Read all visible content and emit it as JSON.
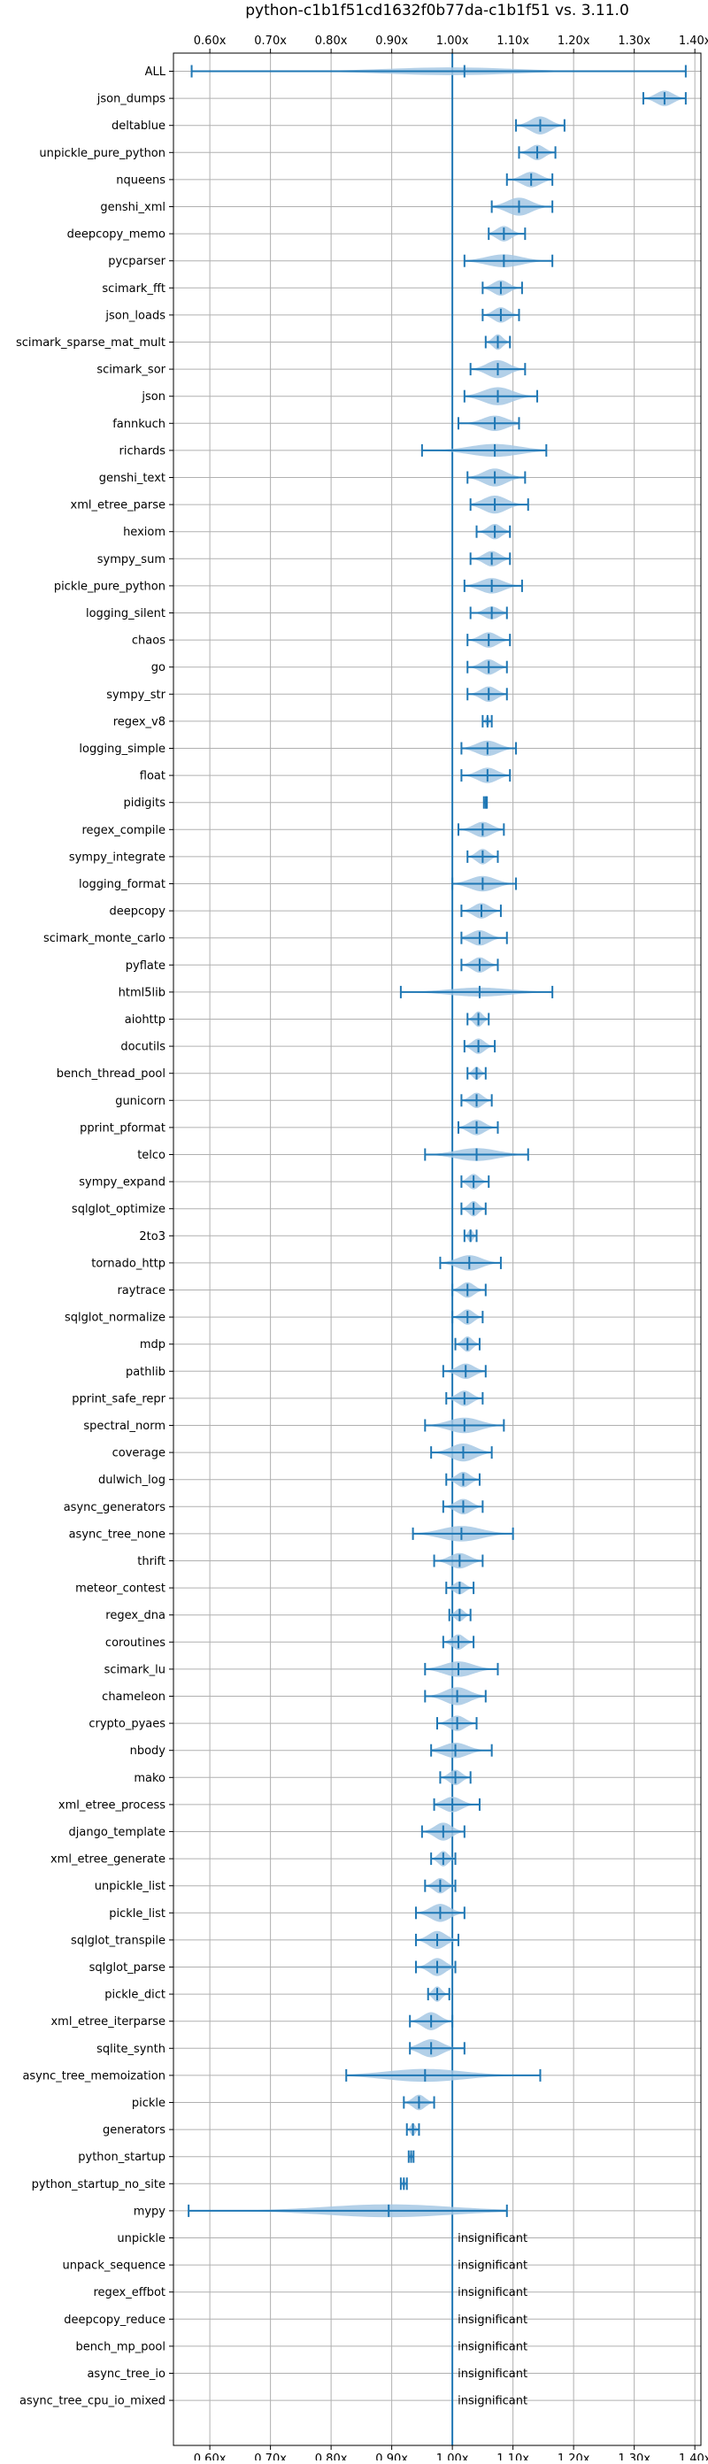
{
  "chart_data": {
    "type": "violin",
    "orientation": "horizontal",
    "title": "python-c1b1f51cd1632f0b77da-c1b1f51 vs. 3.11.0",
    "xlabel": "",
    "ylabel": "",
    "xlim": [
      0.54,
      1.41
    ],
    "x_ticks": [
      0.6,
      0.7,
      0.8,
      0.9,
      1.0,
      1.1,
      1.2,
      1.3,
      1.4
    ],
    "x_tick_labels": [
      "0.60x",
      "0.70x",
      "0.80x",
      "0.90x",
      "1.00x",
      "1.10x",
      "1.20x",
      "1.30x",
      "1.40x"
    ],
    "tick_axes": [
      "top",
      "bottom"
    ],
    "reference_line": 1.0,
    "grid": true,
    "legend": "none",
    "colors": {
      "violin_fill": "#a6c8e4",
      "line": "#1f77b4",
      "grid": "#b0b0b0",
      "text": "#000000",
      "background": "#ffffff"
    },
    "benchmarks": [
      {
        "name": "ALL",
        "min": 0.57,
        "max": 1.385,
        "mean": 1.02,
        "median": 1.02,
        "mode": [
          0.925,
          1.03
        ],
        "width": 0.3
      },
      {
        "name": "json_dumps",
        "min": 1.315,
        "max": 1.385,
        "mean": 1.35,
        "median": 1.35,
        "width": 0.6
      },
      {
        "name": "deltablue",
        "min": 1.105,
        "max": 1.185,
        "mean": 1.145,
        "median": 1.145,
        "width": 0.7
      },
      {
        "name": "unpickle_pure_python",
        "min": 1.11,
        "max": 1.17,
        "mean": 1.14,
        "median": 1.14,
        "width": 0.6
      },
      {
        "name": "nqueens",
        "min": 1.09,
        "max": 1.165,
        "mean": 1.13,
        "median": 1.13,
        "width": 0.6
      },
      {
        "name": "genshi_xml",
        "min": 1.065,
        "max": 1.165,
        "mean": 1.11,
        "median": 1.11,
        "width": 0.7
      },
      {
        "name": "deepcopy_memo",
        "min": 1.06,
        "max": 1.12,
        "mean": 1.085,
        "median": 1.085,
        "width": 0.6
      },
      {
        "name": "pycparser",
        "min": 1.02,
        "max": 1.165,
        "mean": 1.085,
        "median": 1.085,
        "width": 0.5
      },
      {
        "name": "scimark_fft",
        "min": 1.05,
        "max": 1.115,
        "mean": 1.08,
        "median": 1.08,
        "width": 0.6
      },
      {
        "name": "json_loads",
        "min": 1.05,
        "max": 1.11,
        "mean": 1.08,
        "median": 1.08,
        "width": 0.6
      },
      {
        "name": "scimark_sparse_mat_mult",
        "min": 1.055,
        "max": 1.095,
        "mean": 1.075,
        "median": 1.075,
        "width": 0.6
      },
      {
        "name": "scimark_sor",
        "min": 1.03,
        "max": 1.12,
        "mean": 1.075,
        "median": 1.075,
        "width": 0.7
      },
      {
        "name": "json",
        "min": 1.02,
        "max": 1.14,
        "mean": 1.075,
        "median": 1.075,
        "width": 0.7
      },
      {
        "name": "fannkuch",
        "min": 1.01,
        "max": 1.11,
        "mean": 1.07,
        "median": 1.07,
        "width": 0.6
      },
      {
        "name": "richards",
        "min": 0.95,
        "max": 1.155,
        "mean": 1.07,
        "median": 1.07,
        "width": 0.5
      },
      {
        "name": "genshi_text",
        "min": 1.025,
        "max": 1.12,
        "mean": 1.07,
        "median": 1.07,
        "width": 0.7
      },
      {
        "name": "xml_etree_parse",
        "min": 1.03,
        "max": 1.125,
        "mean": 1.07,
        "median": 1.07,
        "width": 0.7
      },
      {
        "name": "hexiom",
        "min": 1.04,
        "max": 1.095,
        "mean": 1.07,
        "median": 1.07,
        "width": 0.6
      },
      {
        "name": "sympy_sum",
        "min": 1.03,
        "max": 1.095,
        "mean": 1.065,
        "median": 1.065,
        "width": 0.6
      },
      {
        "name": "pickle_pure_python",
        "min": 1.02,
        "max": 1.115,
        "mean": 1.065,
        "median": 1.065,
        "width": 0.6
      },
      {
        "name": "logging_silent",
        "min": 1.03,
        "max": 1.09,
        "mean": 1.065,
        "median": 1.065,
        "width": 0.5
      },
      {
        "name": "chaos",
        "min": 1.025,
        "max": 1.095,
        "mean": 1.06,
        "median": 1.06,
        "width": 0.6
      },
      {
        "name": "go",
        "min": 1.025,
        "max": 1.09,
        "mean": 1.06,
        "median": 1.06,
        "width": 0.6
      },
      {
        "name": "sympy_str",
        "min": 1.025,
        "max": 1.09,
        "mean": 1.06,
        "median": 1.06,
        "width": 0.6
      },
      {
        "name": "regex_v8",
        "min": 1.05,
        "max": 1.065,
        "mean": 1.058,
        "median": 1.058,
        "width": 0.4
      },
      {
        "name": "logging_simple",
        "min": 1.015,
        "max": 1.105,
        "mean": 1.058,
        "median": 1.058,
        "width": 0.6
      },
      {
        "name": "float",
        "min": 1.015,
        "max": 1.095,
        "mean": 1.058,
        "median": 1.058,
        "width": 0.6
      },
      {
        "name": "pidigits",
        "min": 1.052,
        "max": 1.057,
        "mean": 1.055,
        "median": 1.055,
        "width": 0.4
      },
      {
        "name": "regex_compile",
        "min": 1.01,
        "max": 1.085,
        "mean": 1.05,
        "median": 1.05,
        "width": 0.6
      },
      {
        "name": "sympy_integrate",
        "min": 1.025,
        "max": 1.075,
        "mean": 1.05,
        "median": 1.05,
        "width": 0.6
      },
      {
        "name": "logging_format",
        "min": 1.0,
        "max": 1.105,
        "mean": 1.05,
        "median": 1.05,
        "width": 0.6
      },
      {
        "name": "deepcopy",
        "min": 1.015,
        "max": 1.08,
        "mean": 1.048,
        "median": 1.048,
        "width": 0.6
      },
      {
        "name": "scimark_monte_carlo",
        "min": 1.015,
        "max": 1.09,
        "mean": 1.045,
        "median": 1.045,
        "width": 0.6
      },
      {
        "name": "pyflate",
        "min": 1.015,
        "max": 1.075,
        "mean": 1.045,
        "median": 1.045,
        "width": 0.6
      },
      {
        "name": "html5lib",
        "min": 0.915,
        "max": 1.165,
        "mean": 1.045,
        "median": 1.045,
        "width": 0.35
      },
      {
        "name": "aiohttp",
        "min": 1.025,
        "max": 1.06,
        "mean": 1.043,
        "median": 1.043,
        "width": 0.6
      },
      {
        "name": "docutils",
        "min": 1.02,
        "max": 1.07,
        "mean": 1.043,
        "median": 1.043,
        "width": 0.6
      },
      {
        "name": "bench_thread_pool",
        "min": 1.025,
        "max": 1.055,
        "mean": 1.04,
        "median": 1.04,
        "width": 0.5
      },
      {
        "name": "gunicorn",
        "min": 1.015,
        "max": 1.065,
        "mean": 1.04,
        "median": 1.04,
        "width": 0.6
      },
      {
        "name": "pprint_pformat",
        "min": 1.01,
        "max": 1.075,
        "mean": 1.04,
        "median": 1.04,
        "width": 0.6
      },
      {
        "name": "telco",
        "min": 0.955,
        "max": 1.125,
        "mean": 1.04,
        "median": 1.04,
        "width": 0.5
      },
      {
        "name": "sympy_expand",
        "min": 1.015,
        "max": 1.06,
        "mean": 1.035,
        "median": 1.035,
        "width": 0.6
      },
      {
        "name": "sqlglot_optimize",
        "min": 1.015,
        "max": 1.055,
        "mean": 1.035,
        "median": 1.035,
        "width": 0.6
      },
      {
        "name": "2to3",
        "min": 1.02,
        "max": 1.04,
        "mean": 1.03,
        "median": 1.03,
        "width": 0.5
      },
      {
        "name": "tornado_http",
        "min": 0.98,
        "max": 1.08,
        "mean": 1.028,
        "median": 1.028,
        "width": 0.6
      },
      {
        "name": "raytrace",
        "min": 1.0,
        "max": 1.055,
        "mean": 1.025,
        "median": 1.025,
        "width": 0.6
      },
      {
        "name": "sqlglot_normalize",
        "min": 1.0,
        "max": 1.05,
        "mean": 1.025,
        "median": 1.025,
        "width": 0.6
      },
      {
        "name": "mdp",
        "min": 1.005,
        "max": 1.045,
        "mean": 1.025,
        "median": 1.025,
        "width": 0.6
      },
      {
        "name": "pathlib",
        "min": 0.985,
        "max": 1.055,
        "mean": 1.022,
        "median": 1.022,
        "width": 0.6
      },
      {
        "name": "pprint_safe_repr",
        "min": 0.99,
        "max": 1.05,
        "mean": 1.02,
        "median": 1.02,
        "width": 0.6
      },
      {
        "name": "spectral_norm",
        "min": 0.955,
        "max": 1.085,
        "mean": 1.02,
        "median": 1.02,
        "width": 0.6
      },
      {
        "name": "coverage",
        "min": 0.965,
        "max": 1.065,
        "mean": 1.018,
        "median": 1.018,
        "width": 0.7
      },
      {
        "name": "dulwich_log",
        "min": 0.99,
        "max": 1.045,
        "mean": 1.018,
        "median": 1.018,
        "width": 0.6
      },
      {
        "name": "async_generators",
        "min": 0.985,
        "max": 1.05,
        "mean": 1.018,
        "median": 1.018,
        "width": 0.6
      },
      {
        "name": "async_tree_none",
        "min": 0.935,
        "max": 1.1,
        "mean": 1.015,
        "median": 1.015,
        "width": 0.6
      },
      {
        "name": "thrift",
        "min": 0.97,
        "max": 1.05,
        "mean": 1.012,
        "median": 1.012,
        "width": 0.6
      },
      {
        "name": "meteor_contest",
        "min": 0.99,
        "max": 1.035,
        "mean": 1.012,
        "median": 1.012,
        "width": 0.5
      },
      {
        "name": "regex_dna",
        "min": 0.995,
        "max": 1.03,
        "mean": 1.012,
        "median": 1.012,
        "width": 0.5
      },
      {
        "name": "coroutines",
        "min": 0.985,
        "max": 1.035,
        "mean": 1.01,
        "median": 1.01,
        "width": 0.6
      },
      {
        "name": "scimark_lu",
        "min": 0.955,
        "max": 1.075,
        "mean": 1.01,
        "median": 1.01,
        "width": 0.6
      },
      {
        "name": "chameleon",
        "min": 0.955,
        "max": 1.055,
        "mean": 1.008,
        "median": 1.008,
        "width": 0.7
      },
      {
        "name": "crypto_pyaes",
        "min": 0.975,
        "max": 1.04,
        "mean": 1.008,
        "median": 1.008,
        "width": 0.6
      },
      {
        "name": "nbody",
        "min": 0.965,
        "max": 1.065,
        "mean": 1.005,
        "median": 1.005,
        "width": 0.6
      },
      {
        "name": "mako",
        "min": 0.98,
        "max": 1.03,
        "mean": 1.005,
        "median": 1.005,
        "width": 0.6
      },
      {
        "name": "xml_etree_process",
        "min": 0.97,
        "max": 1.045,
        "mean": 1.0,
        "median": 1.0,
        "width": 0.6
      },
      {
        "name": "django_template",
        "min": 0.95,
        "max": 1.02,
        "mean": 0.985,
        "median": 0.985,
        "width": 0.7
      },
      {
        "name": "xml_etree_generate",
        "min": 0.965,
        "max": 1.005,
        "mean": 0.985,
        "median": 0.985,
        "width": 0.6
      },
      {
        "name": "unpickle_list",
        "min": 0.955,
        "max": 1.005,
        "mean": 0.98,
        "median": 0.98,
        "width": 0.6
      },
      {
        "name": "pickle_list",
        "min": 0.94,
        "max": 1.02,
        "mean": 0.98,
        "median": 0.98,
        "width": 0.7
      },
      {
        "name": "sqlglot_transpile",
        "min": 0.94,
        "max": 1.01,
        "mean": 0.975,
        "median": 0.975,
        "width": 0.7
      },
      {
        "name": "sqlglot_parse",
        "min": 0.94,
        "max": 1.005,
        "mean": 0.975,
        "median": 0.975,
        "width": 0.7
      },
      {
        "name": "pickle_dict",
        "min": 0.96,
        "max": 0.995,
        "mean": 0.975,
        "median": 0.975,
        "width": 0.6
      },
      {
        "name": "xml_etree_iterparse",
        "min": 0.93,
        "max": 1.0,
        "mean": 0.965,
        "median": 0.965,
        "width": 0.7
      },
      {
        "name": "sqlite_synth",
        "min": 0.93,
        "max": 1.02,
        "mean": 0.965,
        "median": 0.965,
        "width": 0.7
      },
      {
        "name": "async_tree_memoization",
        "min": 0.825,
        "max": 1.145,
        "mean": 0.955,
        "median": 0.955,
        "width": 0.5
      },
      {
        "name": "pickle",
        "min": 0.92,
        "max": 0.97,
        "mean": 0.945,
        "median": 0.945,
        "width": 0.6
      },
      {
        "name": "generators",
        "min": 0.925,
        "max": 0.945,
        "mean": 0.935,
        "median": 0.935,
        "width": 0.5
      },
      {
        "name": "python_startup",
        "min": 0.928,
        "max": 0.936,
        "mean": 0.932,
        "median": 0.932,
        "width": 0.4
      },
      {
        "name": "python_startup_no_site",
        "min": 0.915,
        "max": 0.925,
        "mean": 0.92,
        "median": 0.92,
        "width": 0.4
      },
      {
        "name": "mypy",
        "min": 0.565,
        "max": 1.09,
        "mean": 0.895,
        "median": 0.895,
        "width": 0.5
      },
      {
        "name": "unpickle",
        "note": "insignificant"
      },
      {
        "name": "unpack_sequence",
        "note": "insignificant"
      },
      {
        "name": "regex_effbot",
        "note": "insignificant"
      },
      {
        "name": "deepcopy_reduce",
        "note": "insignificant"
      },
      {
        "name": "bench_mp_pool",
        "note": "insignificant"
      },
      {
        "name": "async_tree_io",
        "note": "insignificant"
      },
      {
        "name": "async_tree_cpu_io_mixed",
        "note": "insignificant"
      }
    ]
  }
}
